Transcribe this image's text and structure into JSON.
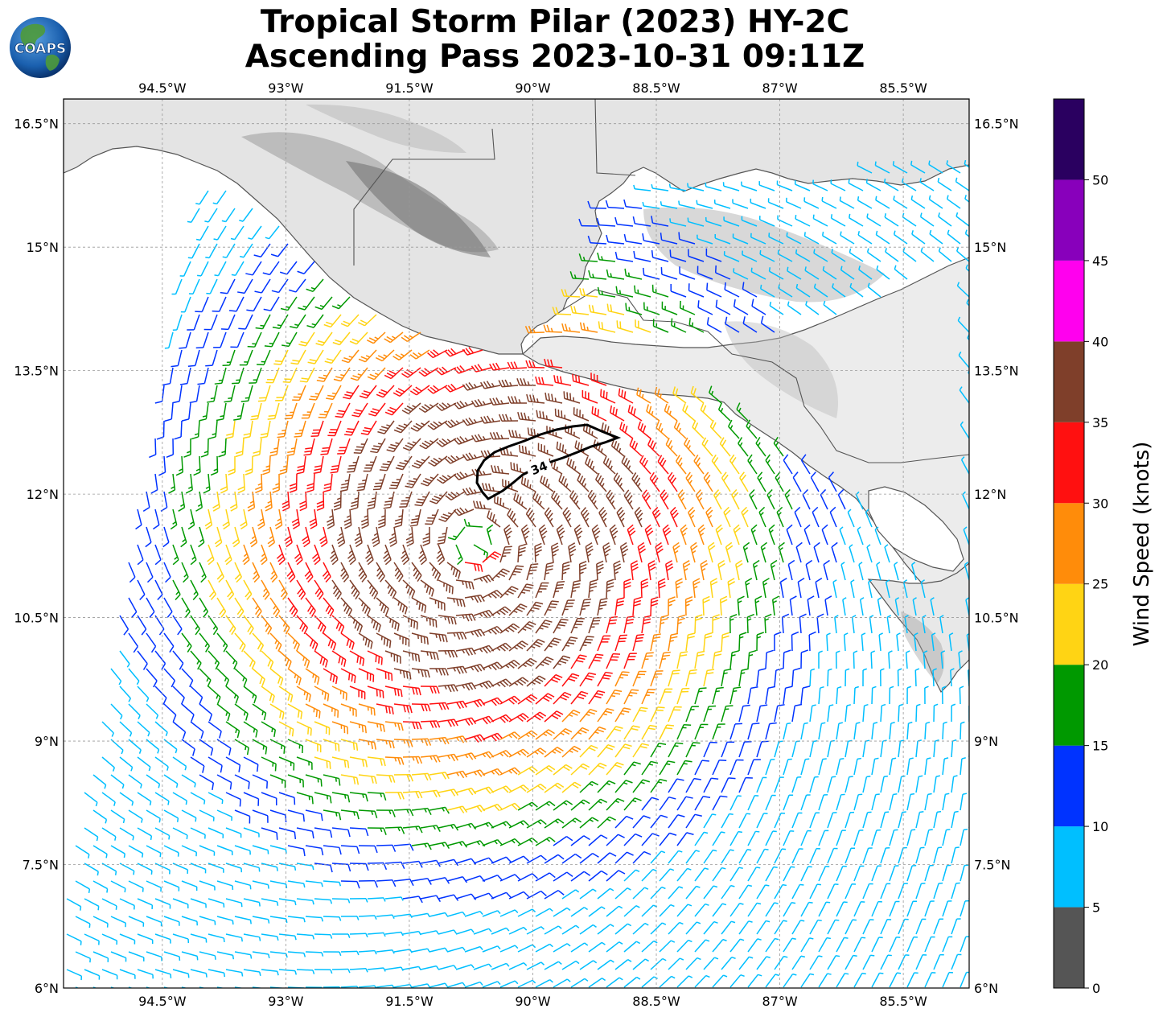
{
  "title": {
    "line1": "Tropical Storm Pilar (2023) HY-2C",
    "line2": "Ascending Pass 2023-10-31 09:11Z"
  },
  "logo": {
    "text": "COAPS",
    "icon": "globe-logo-icon"
  },
  "map": {
    "lon_ticks": [
      "94.5°W",
      "93°W",
      "91.5°W",
      "90°W",
      "88.5°W",
      "87°W",
      "85.5°W"
    ],
    "lat_ticks": [
      "16.5°N",
      "15°N",
      "13.5°N",
      "12°N",
      "10.5°N",
      "9°N",
      "7.5°N",
      "6°N"
    ],
    "lon_range": [
      -95.7,
      -84.7
    ],
    "lat_range": [
      6.0,
      16.8
    ],
    "gridlines": true,
    "land_color": "greyscale-terrain",
    "contour": {
      "label": "34",
      "units": "knots"
    },
    "storm_center": {
      "lon": -90.7,
      "lat": 11.4
    }
  },
  "colorbar": {
    "label": "Wind Speed (knots)",
    "ticks": [
      "0",
      "5",
      "10",
      "15",
      "20",
      "25",
      "30",
      "35",
      "40",
      "45",
      "50"
    ],
    "bins": [
      {
        "min": 0,
        "max": 5,
        "color": "#555555"
      },
      {
        "min": 5,
        "max": 10,
        "color": "#00bfff"
      },
      {
        "min": 10,
        "max": 15,
        "color": "#0033ff"
      },
      {
        "min": 15,
        "max": 20,
        "color": "#009900"
      },
      {
        "min": 20,
        "max": 25,
        "color": "#ffd414"
      },
      {
        "min": 25,
        "max": 30,
        "color": "#ff8c0a"
      },
      {
        "min": 30,
        "max": 35,
        "color": "#ff1010"
      },
      {
        "min": 35,
        "max": 40,
        "color": "#7f3f2a"
      },
      {
        "min": 40,
        "max": 45,
        "color": "#ff00ee"
      },
      {
        "min": 45,
        "max": 50,
        "color": "#8800bb"
      },
      {
        "min": 50,
        "max": 55,
        "color": "#2a0060"
      }
    ]
  }
}
